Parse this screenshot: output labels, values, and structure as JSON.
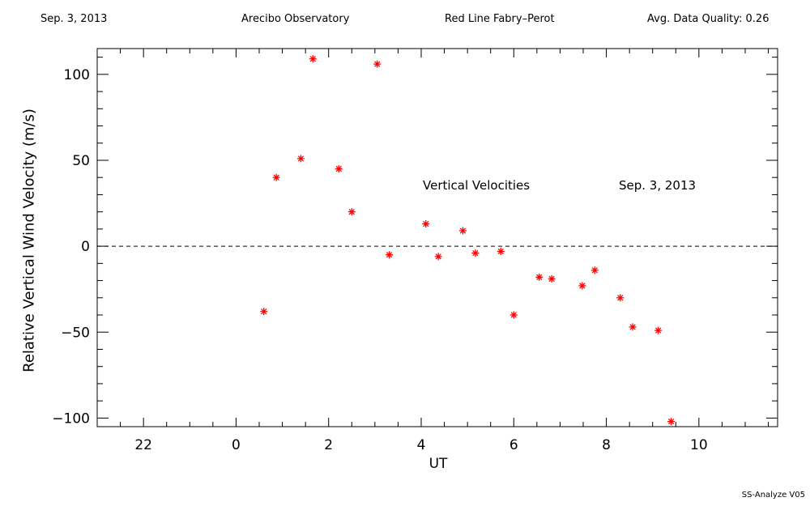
{
  "header": {
    "date": "Sep. 3, 2013",
    "observatory": "Arecibo Observatory",
    "instrument": "Red Line Fabry–Perot",
    "quality": "Avg. Data Quality: 0.26"
  },
  "footer": {
    "version": "SS-Analyze V05"
  },
  "chart_data": {
    "type": "scatter",
    "title": "",
    "xlabel": "UT",
    "ylabel": "Relative Vertical Wind Velocity (m/s)",
    "x_ticks": [
      22,
      0,
      2,
      4,
      6,
      8,
      10
    ],
    "y_ticks": [
      100,
      50,
      0,
      -50,
      -100
    ],
    "ylim": [
      -105,
      115
    ],
    "xlim_ut": [
      21,
      11.7
    ],
    "marker_color": "#ff0000",
    "zero_line": "dashed",
    "annotations": [
      "Vertical Velocities",
      "Sep. 3, 2013"
    ],
    "series": [
      {
        "x": [
          0.6,
          0.87,
          1.4,
          1.66,
          2.22,
          2.5,
          3.05,
          3.31,
          4.1,
          4.37,
          4.9,
          5.17,
          5.72,
          6.0,
          6.55,
          6.82,
          7.48,
          7.75,
          8.3,
          8.57,
          9.12,
          9.4
        ],
        "y": [
          -38,
          40,
          51,
          109,
          45,
          20,
          106,
          -5,
          13,
          -6,
          9,
          -4,
          -3,
          -40,
          -18,
          -19,
          -23,
          -14,
          -30,
          -47,
          -49,
          -102
        ]
      }
    ]
  }
}
